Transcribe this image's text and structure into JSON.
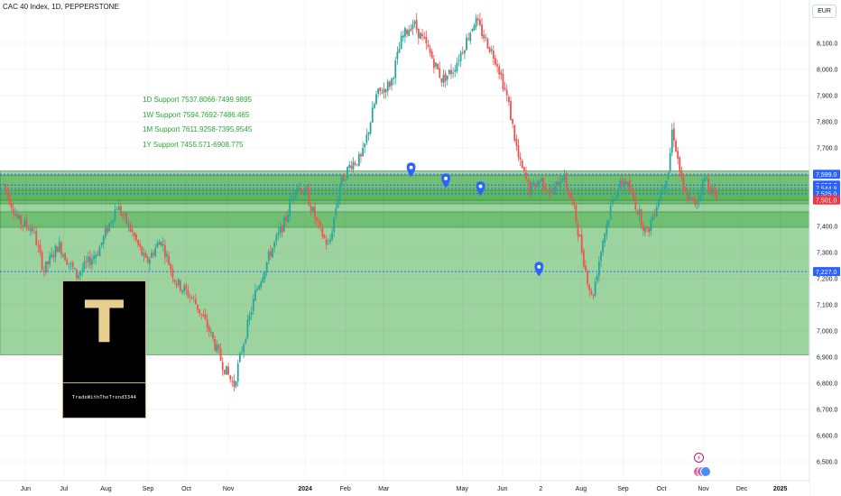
{
  "header": {
    "title": "CAC 40 Index, 1D, PEPPERSTONE"
  },
  "currency": "EUR",
  "support_notes": [
    "1D Support 7537.8066-7499.9895",
    "1W Support 7594.7692-7486.465",
    "1M Support 7611.9258-7395.9545",
    "1Y Support 7455.571-6908.775"
  ],
  "logo": {
    "letter": "T",
    "caption": "TradeWithTheTrend3344"
  },
  "event_icons": [
    "pin-icon",
    "pin-icon",
    "pin-icon",
    "pin-icon",
    "lightning-icon",
    "earnings-icons"
  ],
  "colors": {
    "up": "#26a69a",
    "down": "#ef5350",
    "zone": "#4caf50",
    "line": "#2962ff",
    "last": "#f23645"
  },
  "chart_data": {
    "type": "candlestick",
    "symbol": "CAC 40 Index",
    "timeframe": "1D",
    "source": "PEPPERSTONE",
    "ylim": [
      6450,
      8200
    ],
    "y_ticks": [
      6500,
      6600,
      6700,
      6800,
      6900,
      7000,
      7100,
      7200,
      7300,
      7400,
      7500,
      7600,
      7700,
      7800,
      7900,
      8000,
      8100
    ],
    "y_tick_labels": [
      "6,500.0",
      "6,600.0",
      "6,700.0",
      "6,800.0",
      "6,900.0",
      "7,000.0",
      "7,100.0",
      "7,200.0",
      "7,300.0",
      "7,400.0",
      "7,500.0",
      "7,600.0",
      "7,700.0",
      "7,800.0",
      "7,900.0",
      "8,000.0",
      "8,100.0"
    ],
    "x_ticks": [
      {
        "label": "Jun",
        "t": 12
      },
      {
        "label": "Jul",
        "t": 33
      },
      {
        "label": "Aug",
        "t": 56
      },
      {
        "label": "Sep",
        "t": 79
      },
      {
        "label": "Oct",
        "t": 100
      },
      {
        "label": "Nov",
        "t": 123
      },
      {
        "label": "2024",
        "t": 165
      },
      {
        "label": "Feb",
        "t": 187
      },
      {
        "label": "Mar",
        "t": 208
      },
      {
        "label": "May",
        "t": 251
      },
      {
        "label": "Jun",
        "t": 273
      },
      {
        "label": "2",
        "t": 294
      },
      {
        "label": "Aug",
        "t": 316
      },
      {
        "label": "Sep",
        "t": 339
      },
      {
        "label": "Oct",
        "t": 360
      },
      {
        "label": "Nov",
        "t": 383
      },
      {
        "label": "Dec",
        "t": 404
      },
      {
        "label": "2025",
        "t": 425
      }
    ],
    "time_range": [
      -2,
      441
    ],
    "bars": 372,
    "support_zones": [
      {
        "name": "1M Support",
        "from": 7395.9545,
        "to": 7611.9258
      },
      {
        "name": "1W Support",
        "from": 7486.465,
        "to": 7594.7692
      },
      {
        "name": "1D Support",
        "from": 7499.9895,
        "to": 7537.8066
      },
      {
        "name": "1Y Support",
        "from": 6908.775,
        "to": 7455.571
      }
    ],
    "dotted_levels": [
      7599.0,
      7557.7,
      7544.9,
      7525.0,
      7227.0
    ],
    "price_labels": [
      {
        "value": 7599.0,
        "text": "7,599.0"
      },
      {
        "value": 7557.7,
        "text": "7,557.7"
      },
      {
        "value": 7544.9,
        "text": "7,544.9"
      },
      {
        "value": 7525.0,
        "text": "7,525.0"
      },
      {
        "value": 7501.0,
        "text": "7,501.0",
        "last": true
      },
      {
        "value": 7227.0,
        "text": "7,227.0"
      }
    ],
    "pins": [
      {
        "t": 223,
        "price": 7620
      },
      {
        "t": 242,
        "price": 7578
      },
      {
        "t": 261,
        "price": 7548
      },
      {
        "t": 293,
        "price": 7240
      }
    ],
    "price_path": [
      {
        "t": 0,
        "p": 7560
      },
      {
        "t": 8,
        "p": 7420
      },
      {
        "t": 16,
        "p": 7390
      },
      {
        "t": 22,
        "p": 7230
      },
      {
        "t": 30,
        "p": 7330
      },
      {
        "t": 40,
        "p": 7210
      },
      {
        "t": 52,
        "p": 7310
      },
      {
        "t": 62,
        "p": 7480
      },
      {
        "t": 70,
        "p": 7380
      },
      {
        "t": 78,
        "p": 7260
      },
      {
        "t": 86,
        "p": 7350
      },
      {
        "t": 94,
        "p": 7190
      },
      {
        "t": 104,
        "p": 7120
      },
      {
        "t": 112,
        "p": 7010
      },
      {
        "t": 120,
        "p": 6870
      },
      {
        "t": 126,
        "p": 6790
      },
      {
        "t": 130,
        "p": 6920
      },
      {
        "t": 138,
        "p": 7150
      },
      {
        "t": 146,
        "p": 7300
      },
      {
        "t": 154,
        "p": 7420
      },
      {
        "t": 160,
        "p": 7560
      },
      {
        "t": 166,
        "p": 7520
      },
      {
        "t": 172,
        "p": 7400
      },
      {
        "t": 178,
        "p": 7320
      },
      {
        "t": 184,
        "p": 7560
      },
      {
        "t": 190,
        "p": 7640
      },
      {
        "t": 196,
        "p": 7660
      },
      {
        "t": 204,
        "p": 7900
      },
      {
        "t": 212,
        "p": 7950
      },
      {
        "t": 218,
        "p": 8120
      },
      {
        "t": 224,
        "p": 8180
      },
      {
        "t": 232,
        "p": 8080
      },
      {
        "t": 240,
        "p": 7960
      },
      {
        "t": 246,
        "p": 8000
      },
      {
        "t": 252,
        "p": 8090
      },
      {
        "t": 258,
        "p": 8190
      },
      {
        "t": 264,
        "p": 8110
      },
      {
        "t": 270,
        "p": 8030
      },
      {
        "t": 276,
        "p": 7880
      },
      {
        "t": 282,
        "p": 7650
      },
      {
        "t": 288,
        "p": 7540
      },
      {
        "t": 294,
        "p": 7580
      },
      {
        "t": 300,
        "p": 7520
      },
      {
        "t": 306,
        "p": 7600
      },
      {
        "t": 312,
        "p": 7470
      },
      {
        "t": 318,
        "p": 7250
      },
      {
        "t": 322,
        "p": 7120
      },
      {
        "t": 328,
        "p": 7350
      },
      {
        "t": 334,
        "p": 7520
      },
      {
        "t": 340,
        "p": 7580
      },
      {
        "t": 346,
        "p": 7480
      },
      {
        "t": 352,
        "p": 7370
      },
      {
        "t": 358,
        "p": 7500
      },
      {
        "t": 364,
        "p": 7620
      },
      {
        "t": 366,
        "p": 7780
      },
      {
        "t": 372,
        "p": 7530
      },
      {
        "t": 378,
        "p": 7480
      },
      {
        "t": 384,
        "p": 7590
      },
      {
        "t": 390,
        "p": 7501
      }
    ]
  }
}
